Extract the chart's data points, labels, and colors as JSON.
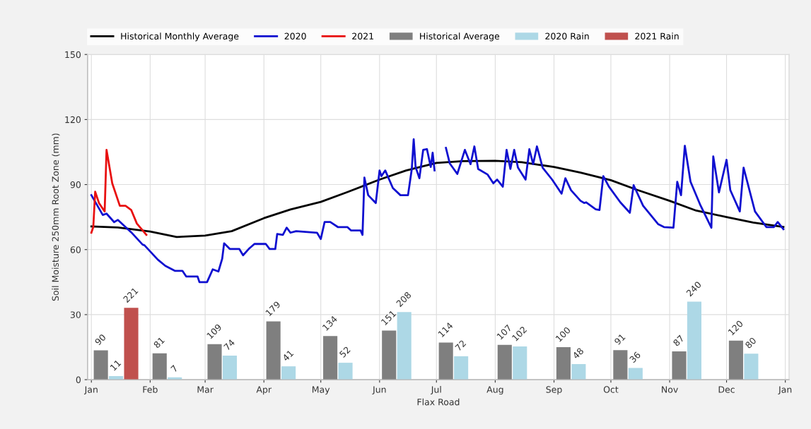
{
  "chart_data": {
    "type": "line",
    "xlabel": "Flax Road",
    "ylabel": "Soil Moisture 250mm Root Zone (mm)",
    "xlim": [
      "2019-12-30",
      "2021-01-03"
    ],
    "xticks": [
      {
        "value": "2020-01-01",
        "label": "Jan"
      },
      {
        "value": "2020-02-01",
        "label": "Feb"
      },
      {
        "value": "2020-03-01",
        "label": "Mar"
      },
      {
        "value": "2020-04-01",
        "label": "Apr"
      },
      {
        "value": "2020-05-01",
        "label": "May"
      },
      {
        "value": "2020-06-01",
        "label": "Jun"
      },
      {
        "value": "2020-07-01",
        "label": "Jul"
      },
      {
        "value": "2020-08-01",
        "label": "Aug"
      },
      {
        "value": "2020-09-01",
        "label": "Sep"
      },
      {
        "value": "2020-10-01",
        "label": "Oct"
      },
      {
        "value": "2020-11-01",
        "label": "Nov"
      },
      {
        "value": "2020-12-01",
        "label": "Dec"
      },
      {
        "value": "2021-01-01",
        "label": "Jan"
      }
    ],
    "ylim": [
      0,
      150
    ],
    "yticks": [
      0,
      30,
      60,
      90,
      120,
      150
    ],
    "y2lim": [
      0,
      1000
    ],
    "grid": true,
    "legend": "top left",
    "series": [
      {
        "name": "Historical Monthly Average",
        "color": "#000000",
        "x": [
          "2020-01-01",
          "2020-01-15",
          "2020-02-01",
          "2020-02-15",
          "2020-03-01",
          "2020-03-15",
          "2020-04-01",
          "2020-04-15",
          "2020-05-01",
          "2020-05-15",
          "2020-06-01",
          "2020-06-15",
          "2020-07-01",
          "2020-07-15",
          "2020-08-01",
          "2020-08-15",
          "2020-09-01",
          "2020-09-15",
          "2020-10-01",
          "2020-10-15",
          "2020-11-01",
          "2020-11-15",
          "2020-12-01",
          "2020-12-15",
          "2020-12-31"
        ],
        "values": [
          70.7,
          70.2,
          68.3,
          65.8,
          66.5,
          68.5,
          74.5,
          78.5,
          82,
          86.5,
          92.3,
          96.5,
          100,
          100.8,
          101,
          100.3,
          98.1,
          95.5,
          92,
          87.5,
          82.5,
          78,
          75,
          72.5,
          70.4
        ]
      },
      {
        "name": "2020",
        "color": "#1010d0",
        "x": [
          "2020-01-01",
          "2020-01-07",
          "2020-01-09",
          "2020-01-13",
          "2020-01-15",
          "2020-01-22",
          "2020-01-28",
          "2020-01-29",
          "2020-02-05",
          "2020-02-09",
          "2020-02-14",
          "2020-02-18",
          "2020-02-20",
          "2020-02-26",
          "2020-02-27",
          "2020-03-02",
          "2020-03-05",
          "2020-03-08",
          "2020-03-10",
          "2020-03-11",
          "2020-03-14",
          "2020-03-19",
          "2020-03-21",
          "2020-03-24",
          "2020-03-27",
          "2020-04-02",
          "2020-04-04",
          "2020-04-07",
          "2020-04-08",
          "2020-04-11",
          "2020-04-13",
          "2020-04-15",
          "2020-04-18",
          "2020-04-29",
          "2020-05-01",
          "2020-05-03",
          "2020-05-06",
          "2020-05-10",
          "2020-05-15",
          "2020-05-17",
          "2020-05-22",
          "2020-05-23",
          "2020-05-24",
          "2020-05-26",
          "2020-05-30",
          "2020-06-01",
          "2020-06-02",
          "2020-06-04",
          "2020-06-08",
          "2020-06-12",
          "2020-06-16",
          "2020-06-18",
          "2020-06-19",
          "2020-06-20",
          "2020-06-22",
          "2020-06-24",
          "2020-06-26",
          "2020-06-28",
          "2020-06-29",
          "2020-06-30",
          "2020-07-03",
          "2020-07-06",
          "2020-07-08",
          "2020-07-12",
          "2020-07-16",
          "2020-07-19",
          "2020-07-21",
          "2020-07-23",
          "2020-07-28",
          "2020-07-31",
          "2020-08-02",
          "2020-08-05",
          "2020-08-07",
          "2020-08-09",
          "2020-08-11",
          "2020-08-13",
          "2020-08-17",
          "2020-08-19",
          "2020-08-21",
          "2020-08-23",
          "2020-08-26",
          "2020-08-31",
          "2020-09-05",
          "2020-09-07",
          "2020-09-10",
          "2020-09-15",
          "2020-09-17",
          "2020-09-18",
          "2020-09-23",
          "2020-09-25",
          "2020-09-27",
          "2020-09-30",
          "2020-10-06",
          "2020-10-11",
          "2020-10-13",
          "2020-10-18",
          "2020-10-26",
          "2020-10-29",
          "2020-11-03",
          "2020-11-05",
          "2020-11-07",
          "2020-11-09",
          "2020-11-12",
          "2020-11-17",
          "2020-11-23",
          "2020-11-24",
          "2020-11-27",
          "2020-12-01",
          "2020-12-03",
          "2020-12-08",
          "2020-12-10",
          "2020-12-16",
          "2020-12-22",
          "2020-12-26",
          "2020-12-28",
          "2020-12-31"
        ],
        "values": [
          85.1,
          76,
          76.6,
          72.7,
          73.7,
          68,
          62.3,
          62,
          55.4,
          52.5,
          50.2,
          50.2,
          47.6,
          47.6,
          45,
          45,
          50.9,
          49.9,
          55.8,
          62.9,
          60.3,
          60.3,
          57.4,
          60.3,
          62.6,
          62.6,
          60.3,
          60.3,
          67.2,
          66.8,
          70.1,
          67.8,
          68.5,
          67.8,
          64.9,
          72.7,
          72.7,
          70.4,
          70.4,
          68.8,
          68.8,
          66.8,
          93.2,
          85.1,
          81.5,
          96.5,
          93.9,
          96.5,
          88.4,
          85.1,
          85.1,
          97.2,
          110.9,
          98.1,
          92.9,
          106,
          106.3,
          98.1,
          104.7,
          96.5,
          null,
          106.9,
          99.8,
          94.9,
          106,
          99.4,
          107.6,
          97.2,
          94.6,
          90.6,
          92.3,
          89,
          106,
          97.2,
          106,
          97.8,
          92.3,
          106.3,
          99.4,
          107.6,
          97.8,
          92.3,
          85.8,
          92.9,
          87.4,
          82.5,
          81.5,
          81.8,
          78.6,
          78.3,
          93.9,
          89,
          81.8,
          77,
          89.7,
          80.2,
          71.7,
          70.4,
          70.1,
          91.3,
          85.1,
          107.9,
          91.3,
          80.9,
          70.1,
          103,
          86.4,
          101.4,
          87.4,
          77.6,
          97.8,
          77.6,
          70.4,
          70.4,
          72.7,
          69.4
        ]
      },
      {
        "name": "2021",
        "color": "#e81010",
        "x": [
          "2020-01-01",
          "2020-01-02",
          "2020-01-03",
          "2020-01-05",
          "2020-01-08",
          "2020-01-09",
          "2020-01-12",
          "2020-01-16",
          "2020-01-19",
          "2020-01-22",
          "2020-01-25",
          "2020-01-30"
        ],
        "values": [
          67.8,
          70.4,
          86.7,
          81.5,
          77.6,
          106,
          90.6,
          80.2,
          80.2,
          78.3,
          72,
          66.8
        ]
      },
      {
        "type": "bar",
        "axis": "y2",
        "data_labels": true,
        "name": "Historical Average",
        "color": "#7f7f7f",
        "x": [
          "2020-01-06",
          "2020-02-06",
          "2020-03-06",
          "2020-04-06",
          "2020-05-06",
          "2020-06-06",
          "2020-07-06",
          "2020-08-06",
          "2020-09-06",
          "2020-10-06",
          "2020-11-06",
          "2020-12-06"
        ],
        "values": [
          90,
          81,
          109,
          179,
          134,
          151,
          114,
          107,
          100,
          91,
          87,
          120
        ]
      },
      {
        "type": "bar",
        "axis": "y2",
        "data_labels": true,
        "name": "2020 Rain",
        "color": "#add8e6",
        "x": [
          "2020-01-14",
          "2020-02-14",
          "2020-03-14",
          "2020-04-14",
          "2020-05-14",
          "2020-06-14",
          "2020-07-14",
          "2020-08-14",
          "2020-09-14",
          "2020-10-14",
          "2020-11-14",
          "2020-12-14"
        ],
        "values": [
          11,
          7,
          74,
          41,
          52,
          208,
          72,
          102,
          48,
          36,
          240,
          80
        ]
      },
      {
        "type": "bar",
        "axis": "y2",
        "data_labels": true,
        "name": "2021 Rain",
        "color": "#c0504d",
        "x": [
          "2020-01-22"
        ],
        "values": [
          221
        ]
      }
    ]
  }
}
